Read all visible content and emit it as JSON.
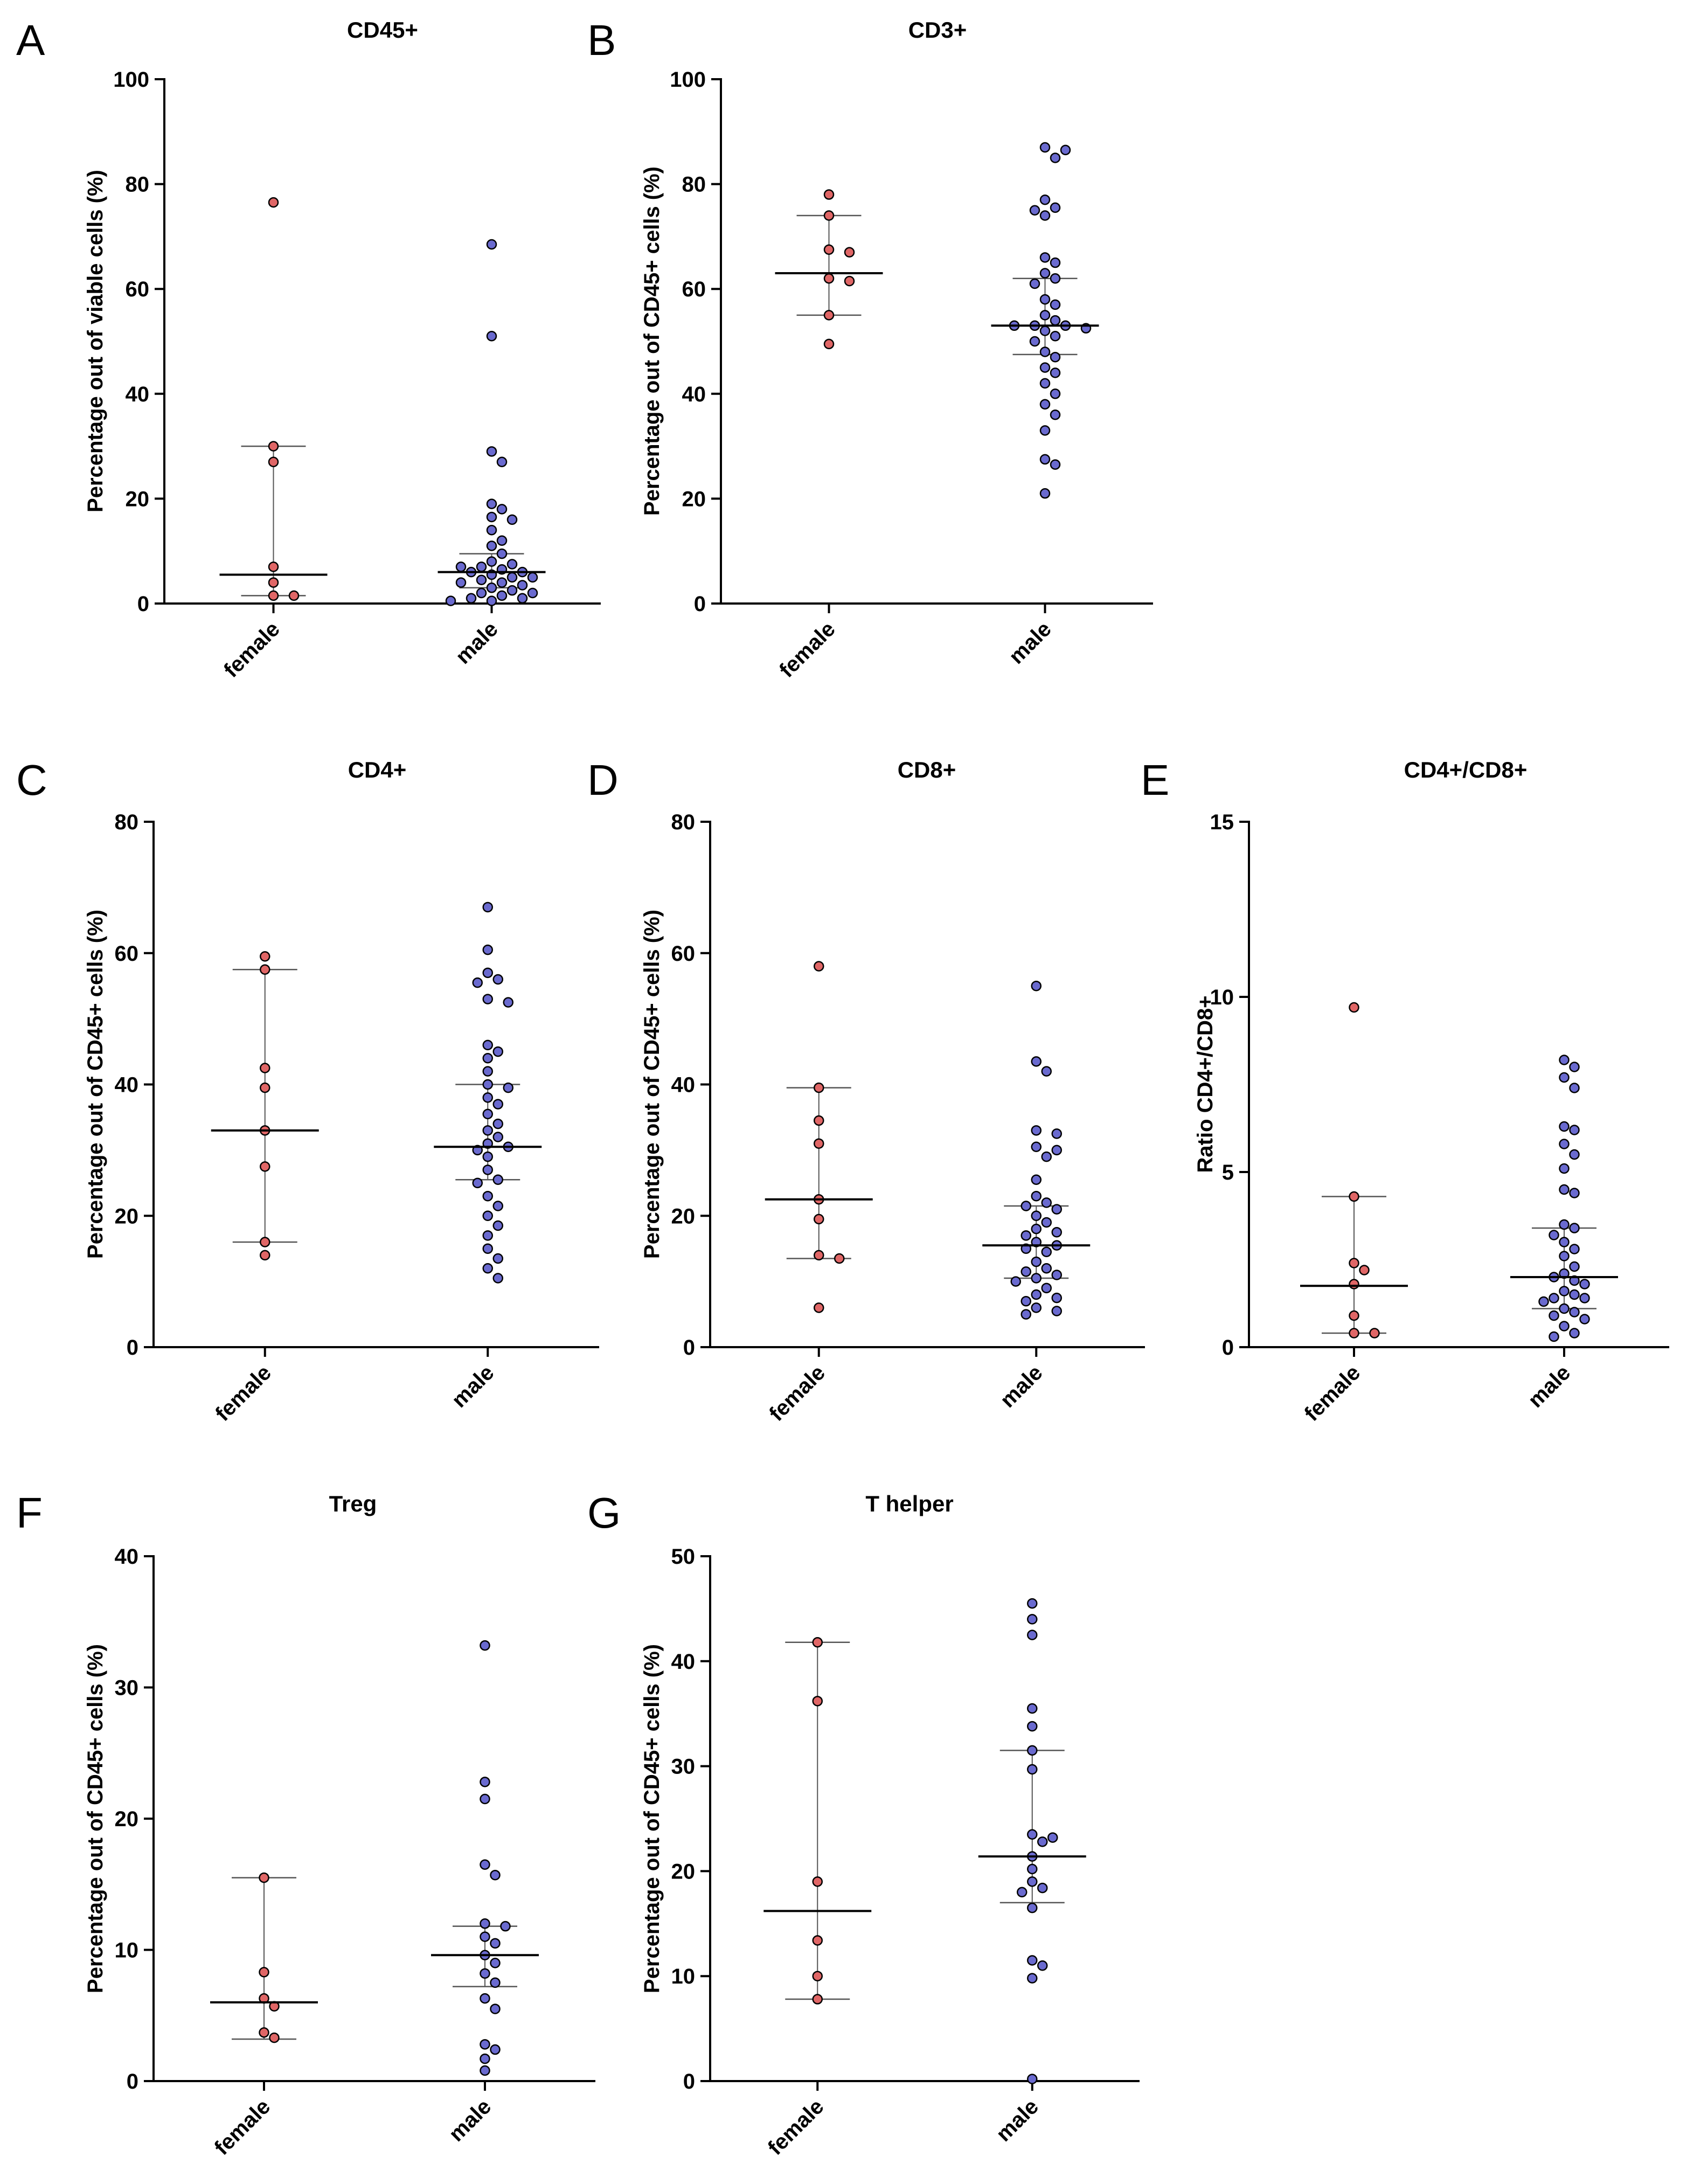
{
  "colors": {
    "female": "#e06666",
    "male": "#6a6acf",
    "stroke": "#000000",
    "errorbar": "#555555"
  },
  "chart_data": [
    {
      "id": "A",
      "type": "scatter",
      "title": "CD45+",
      "ylabel": "Percentage out of viable cells (%)",
      "ylim": [
        0,
        100
      ],
      "yticks": [
        0,
        20,
        40,
        60,
        80,
        100
      ],
      "categories": [
        "female",
        "male"
      ],
      "series": [
        {
          "name": "female",
          "median": 5.5,
          "q1": 1.5,
          "q3": 30,
          "points": [
            76.5,
            30,
            27,
            7,
            4,
            1.5,
            1.5
          ]
        },
        {
          "name": "male",
          "median": 6,
          "q1": 3,
          "q3": 9.5,
          "points": [
            68.5,
            51,
            29,
            27,
            19,
            18,
            16.5,
            16,
            14,
            12,
            11,
            9.5,
            8,
            7.5,
            7,
            7,
            6.5,
            6,
            6,
            5.5,
            5,
            5,
            4.5,
            4,
            4,
            3.5,
            3,
            2.5,
            2,
            2,
            1.5,
            1,
            1,
            0.5,
            0.5
          ]
        }
      ]
    },
    {
      "id": "B",
      "type": "scatter",
      "title": "CD3+",
      "ylabel": "Percentage out of CD45+ cells (%)",
      "ylim": [
        0,
        100
      ],
      "yticks": [
        0,
        20,
        40,
        60,
        80,
        100
      ],
      "categories": [
        "female",
        "male"
      ],
      "series": [
        {
          "name": "female",
          "median": 63,
          "q1": 55,
          "q3": 74,
          "points": [
            78,
            74,
            67.5,
            67,
            62,
            61.5,
            55,
            49.5
          ]
        },
        {
          "name": "male",
          "median": 53,
          "q1": 47.5,
          "q3": 62,
          "points": [
            87,
            86.5,
            85,
            77,
            75.5,
            75,
            74,
            66,
            65,
            63,
            62,
            61,
            58,
            57,
            55,
            54,
            53,
            53,
            53,
            52.5,
            52,
            51,
            50,
            48,
            47,
            45,
            44,
            42,
            40,
            38,
            36,
            33,
            27.5,
            26.5,
            21
          ]
        }
      ]
    },
    {
      "id": "C",
      "type": "scatter",
      "title": "CD4+",
      "ylabel": "Percentage out of CD45+ cells (%)",
      "ylim": [
        0,
        80
      ],
      "yticks": [
        0,
        20,
        40,
        60,
        80
      ],
      "categories": [
        "female",
        "male"
      ],
      "series": [
        {
          "name": "female",
          "median": 33,
          "q1": 16,
          "q3": 57.5,
          "points": [
            59.5,
            57.5,
            42.5,
            39.5,
            33,
            27.5,
            16,
            14
          ]
        },
        {
          "name": "male",
          "median": 30.5,
          "q1": 25.5,
          "q3": 40,
          "points": [
            67,
            60.5,
            57,
            56,
            55.5,
            53,
            52.5,
            46,
            45,
            44,
            42,
            40,
            39.5,
            38,
            37,
            35.5,
            34,
            33,
            32,
            31,
            30.5,
            30,
            29,
            27,
            25.5,
            25,
            23,
            21.5,
            20,
            18.5,
            17,
            15,
            13.5,
            12,
            10.5
          ]
        }
      ]
    },
    {
      "id": "D",
      "type": "scatter",
      "title": "CD8+",
      "ylabel": "Percentage out of CD45+ cells (%)",
      "ylim": [
        0,
        80
      ],
      "yticks": [
        0,
        20,
        40,
        60,
        80
      ],
      "categories": [
        "female",
        "male"
      ],
      "series": [
        {
          "name": "female",
          "median": 22.5,
          "q1": 13.5,
          "q3": 39.5,
          "points": [
            58,
            39.5,
            34.5,
            31,
            22.5,
            19.5,
            14,
            13.5,
            6
          ]
        },
        {
          "name": "male",
          "median": 15.5,
          "q1": 10.5,
          "q3": 21.5,
          "points": [
            55,
            43.5,
            42,
            33,
            32.5,
            30.5,
            30,
            29,
            25.5,
            23,
            22,
            21.5,
            21,
            20,
            19,
            18,
            17.5,
            17,
            16,
            15.5,
            15,
            14.5,
            13,
            12,
            11.5,
            11,
            10.5,
            10,
            9,
            8,
            7.5,
            7,
            6,
            5.5,
            5
          ]
        }
      ]
    },
    {
      "id": "E",
      "type": "scatter",
      "title": "CD4+/CD8+",
      "ylabel": "Ratio CD4+/CD8+",
      "ylim": [
        0,
        15
      ],
      "yticks": [
        0,
        5,
        10,
        15
      ],
      "categories": [
        "female",
        "male"
      ],
      "series": [
        {
          "name": "female",
          "median": 1.75,
          "q1": 0.4,
          "q3": 4.3,
          "points": [
            9.7,
            4.3,
            2.4,
            2.2,
            1.8,
            0.9,
            0.4,
            0.4
          ]
        },
        {
          "name": "male",
          "median": 2,
          "q1": 1.1,
          "q3": 3.4,
          "points": [
            8.2,
            8,
            7.7,
            7.4,
            6.3,
            6.2,
            5.8,
            5.5,
            5.1,
            4.5,
            4.4,
            3.5,
            3.4,
            3.2,
            3,
            2.8,
            2.6,
            2.3,
            2.1,
            2,
            1.9,
            1.8,
            1.6,
            1.5,
            1.4,
            1.4,
            1.3,
            1.1,
            1,
            0.9,
            0.8,
            0.6,
            0.4,
            0.3
          ]
        }
      ]
    },
    {
      "id": "F",
      "type": "scatter",
      "title": "Treg",
      "ylabel": "Percentage out of CD45+ cells (%)",
      "ylim": [
        0,
        40
      ],
      "yticks": [
        0,
        10,
        20,
        30,
        40
      ],
      "categories": [
        "female",
        "male"
      ],
      "series": [
        {
          "name": "female",
          "median": 6,
          "q1": 3.2,
          "q3": 15.5,
          "points": [
            15.5,
            8.3,
            6.3,
            5.7,
            3.7,
            3.3
          ]
        },
        {
          "name": "male",
          "median": 9.6,
          "q1": 7.2,
          "q3": 11.8,
          "points": [
            33.2,
            22.8,
            21.5,
            16.5,
            15.7,
            12,
            11.8,
            11,
            10.5,
            9.6,
            9,
            8.2,
            7.5,
            6.3,
            5.5,
            2.8,
            2.4,
            1.7,
            0.8
          ]
        }
      ]
    },
    {
      "id": "G",
      "type": "scatter",
      "title": "T helper",
      "ylabel": "Percentage out of CD45+ cells (%)",
      "ylim": [
        0,
        50
      ],
      "yticks": [
        0,
        10,
        20,
        30,
        40,
        50
      ],
      "categories": [
        "female",
        "male"
      ],
      "series": [
        {
          "name": "female",
          "median": 16.2,
          "q1": 7.8,
          "q3": 41.8,
          "points": [
            41.8,
            36.2,
            19,
            13.4,
            10,
            7.8
          ]
        },
        {
          "name": "male",
          "median": 21.4,
          "q1": 17,
          "q3": 31.5,
          "points": [
            45.5,
            44,
            42.5,
            35.5,
            33.8,
            31.5,
            29.7,
            23.5,
            23.2,
            22.8,
            21.4,
            20.2,
            19,
            18.4,
            18,
            16.5,
            11.5,
            11,
            9.8,
            0.2
          ]
        }
      ]
    }
  ]
}
